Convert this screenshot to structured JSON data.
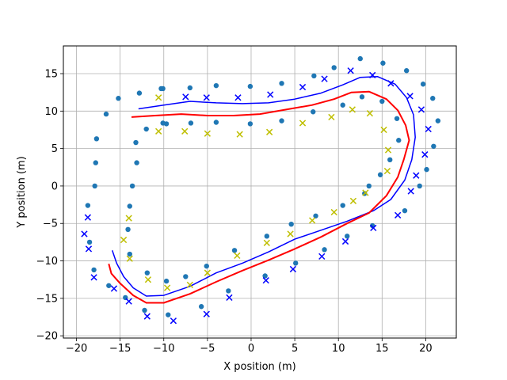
{
  "chart_data": {
    "type": "scatter",
    "xlabel": "X position (m)",
    "ylabel": "Y position (m)",
    "xlim": [
      -21.5,
      23.5
    ],
    "ylim": [
      -20.3,
      18.7
    ],
    "xticks": [
      -20,
      -15,
      -10,
      -5,
      0,
      5,
      10,
      15,
      20
    ],
    "yticks": [
      -20,
      -15,
      -10,
      -5,
      0,
      5,
      10,
      15
    ],
    "grid": true,
    "series": [
      {
        "marker": "circle",
        "color": "#1f77b4",
        "points": [
          [
            -16.6,
            9.6
          ],
          [
            -15.2,
            11.7
          ],
          [
            -12.8,
            12.4
          ],
          [
            -10.3,
            13.0
          ],
          [
            -7.0,
            13.1
          ],
          [
            -4.0,
            13.4
          ],
          [
            -0.1,
            13.3
          ],
          [
            3.5,
            13.7
          ],
          [
            7.2,
            14.7
          ],
          [
            9.5,
            15.8
          ],
          [
            12.5,
            17.0
          ],
          [
            15.1,
            16.4
          ],
          [
            17.8,
            15.4
          ],
          [
            19.7,
            13.6
          ],
          [
            20.8,
            11.7
          ],
          [
            21.4,
            8.7
          ],
          [
            20.9,
            5.3
          ],
          [
            20.1,
            2.2
          ],
          [
            19.3,
            0.0
          ],
          [
            17.6,
            -3.3
          ],
          [
            13.9,
            -5.3
          ],
          [
            11.0,
            -6.7
          ],
          [
            8.4,
            -8.5
          ],
          [
            5.1,
            -10.3
          ],
          [
            1.6,
            -12.0
          ],
          [
            -2.6,
            -14.0
          ],
          [
            -5.7,
            -16.1
          ],
          [
            -9.5,
            -17.2
          ],
          [
            -12.2,
            -16.6
          ],
          [
            -14.4,
            -14.9
          ],
          [
            -16.3,
            -13.3
          ],
          [
            -18.0,
            -11.2
          ],
          [
            -18.5,
            -7.5
          ],
          [
            -18.7,
            -2.6
          ],
          [
            -17.9,
            0.0
          ],
          [
            -17.8,
            3.1
          ],
          [
            -17.7,
            6.3
          ],
          [
            -13.2,
            5.8
          ],
          [
            -13.1,
            3.1
          ],
          [
            -13.6,
            0.0
          ],
          [
            -13.9,
            -2.7
          ],
          [
            -14.1,
            -5.8
          ],
          [
            -13.9,
            -9.1
          ],
          [
            -11.9,
            -11.6
          ],
          [
            -9.7,
            -12.7
          ],
          [
            -7.5,
            -12.1
          ],
          [
            -5.1,
            -10.7
          ],
          [
            -1.9,
            -8.6
          ],
          [
            1.8,
            -6.7
          ],
          [
            4.6,
            -5.1
          ],
          [
            7.4,
            -4.0
          ],
          [
            10.5,
            -2.6
          ],
          [
            13.0,
            -1.0
          ],
          [
            13.5,
            0.0
          ],
          [
            14.8,
            1.5
          ],
          [
            15.9,
            3.5
          ],
          [
            16.9,
            6.1
          ],
          [
            16.7,
            9.0
          ],
          [
            15.0,
            11.3
          ],
          [
            12.7,
            11.9
          ],
          [
            10.5,
            10.8
          ],
          [
            7.1,
            9.9
          ],
          [
            3.5,
            8.7
          ],
          [
            -0.1,
            8.3
          ],
          [
            -4.0,
            8.5
          ],
          [
            -6.9,
            8.4
          ],
          [
            -9.7,
            8.3
          ],
          [
            -12.0,
            7.6
          ],
          [
            -10.1,
            13.0
          ],
          [
            -10.1,
            8.4
          ]
        ]
      },
      {
        "marker": "x",
        "color": "#0000ff",
        "points": [
          [
            -7.5,
            11.9
          ],
          [
            -5.1,
            11.8
          ],
          [
            -1.5,
            11.8
          ],
          [
            2.2,
            12.2
          ],
          [
            5.9,
            13.2
          ],
          [
            8.4,
            14.3
          ],
          [
            11.4,
            15.4
          ],
          [
            13.9,
            14.8
          ],
          [
            16.0,
            13.7
          ],
          [
            18.2,
            12.0
          ],
          [
            19.5,
            10.2
          ],
          [
            20.3,
            7.6
          ],
          [
            19.9,
            4.2
          ],
          [
            18.9,
            1.4
          ],
          [
            18.3,
            -0.7
          ],
          [
            16.8,
            -3.9
          ],
          [
            14.0,
            -5.6
          ],
          [
            10.8,
            -7.4
          ],
          [
            8.1,
            -9.4
          ],
          [
            4.8,
            -11.1
          ],
          [
            1.7,
            -12.6
          ],
          [
            -2.5,
            -14.9
          ],
          [
            -5.1,
            -17.1
          ],
          [
            -8.9,
            -18.0
          ],
          [
            -11.9,
            -17.4
          ],
          [
            -14.0,
            -15.4
          ],
          [
            -15.7,
            -13.7
          ],
          [
            -18.0,
            -12.2
          ],
          [
            -18.6,
            -8.4
          ],
          [
            -19.1,
            -6.4
          ],
          [
            -18.7,
            -4.2
          ]
        ]
      },
      {
        "marker": "x",
        "color": "#bfbf00",
        "points": [
          [
            -10.6,
            11.8
          ],
          [
            -10.6,
            7.3
          ],
          [
            -7.6,
            7.3
          ],
          [
            -5.0,
            7.0
          ],
          [
            -1.3,
            6.9
          ],
          [
            2.1,
            7.2
          ],
          [
            5.9,
            8.4
          ],
          [
            9.2,
            9.2
          ],
          [
            11.6,
            10.2
          ],
          [
            13.6,
            9.7
          ],
          [
            15.2,
            7.5
          ],
          [
            15.7,
            4.8
          ],
          [
            15.6,
            2.0
          ],
          [
            13.1,
            -0.9
          ],
          [
            11.7,
            -2.0
          ],
          [
            9.5,
            -3.5
          ],
          [
            7.0,
            -4.6
          ],
          [
            4.5,
            -6.4
          ],
          [
            1.8,
            -7.6
          ],
          [
            -1.6,
            -9.3
          ],
          [
            -5.0,
            -11.6
          ],
          [
            -7.0,
            -13.2
          ],
          [
            -9.6,
            -13.6
          ],
          [
            -11.8,
            -12.5
          ],
          [
            -13.9,
            -9.7
          ],
          [
            -14.6,
            -7.2
          ],
          [
            -14.0,
            -4.3
          ]
        ]
      }
    ],
    "lines": [
      {
        "color": "#0000ff",
        "points": [
          [
            -12.9,
            10.3
          ],
          [
            -10.0,
            10.8
          ],
          [
            -7.0,
            11.3
          ],
          [
            -4.0,
            11.1
          ],
          [
            -1.0,
            11.0
          ],
          [
            2.0,
            11.1
          ],
          [
            5.0,
            11.6
          ],
          [
            8.0,
            12.4
          ],
          [
            10.5,
            13.5
          ],
          [
            12.5,
            14.5
          ],
          [
            14.5,
            14.6
          ],
          [
            16.5,
            13.6
          ],
          [
            17.8,
            11.8
          ],
          [
            18.6,
            9.5
          ],
          [
            18.8,
            6.5
          ],
          [
            18.4,
            3.5
          ],
          [
            17.6,
            0.8
          ],
          [
            16.0,
            -1.8
          ],
          [
            14.0,
            -3.3
          ],
          [
            11.0,
            -4.7
          ],
          [
            8.0,
            -5.9
          ],
          [
            5.0,
            -7.1
          ],
          [
            2.0,
            -8.8
          ],
          [
            -1.0,
            -10.3
          ],
          [
            -4.0,
            -11.6
          ],
          [
            -7.0,
            -13.4
          ],
          [
            -10.0,
            -14.6
          ],
          [
            -12.0,
            -14.7
          ],
          [
            -13.5,
            -13.6
          ],
          [
            -14.6,
            -12.1
          ],
          [
            -15.4,
            -10.3
          ],
          [
            -15.9,
            -8.6
          ]
        ]
      },
      {
        "color": "#ff0000",
        "points": [
          [
            -13.7,
            9.2
          ],
          [
            -11.0,
            9.4
          ],
          [
            -8.0,
            9.6
          ],
          [
            -5.0,
            9.4
          ],
          [
            -2.0,
            9.4
          ],
          [
            1.0,
            9.6
          ],
          [
            4.0,
            10.2
          ],
          [
            7.0,
            10.8
          ],
          [
            9.5,
            11.6
          ],
          [
            11.5,
            12.5
          ],
          [
            13.5,
            12.6
          ],
          [
            15.5,
            11.6
          ],
          [
            16.8,
            10.1
          ],
          [
            17.7,
            8.1
          ],
          [
            18.1,
            6.1
          ],
          [
            17.5,
            3.6
          ],
          [
            16.8,
            1.2
          ],
          [
            15.5,
            -1.3
          ],
          [
            13.5,
            -3.6
          ],
          [
            11.0,
            -5.0
          ],
          [
            8.0,
            -6.8
          ],
          [
            5.0,
            -8.4
          ],
          [
            2.0,
            -9.9
          ],
          [
            -1.0,
            -11.3
          ],
          [
            -4.0,
            -12.8
          ],
          [
            -7.0,
            -14.4
          ],
          [
            -10.0,
            -15.6
          ],
          [
            -12.0,
            -15.6
          ],
          [
            -13.5,
            -14.6
          ],
          [
            -15.0,
            -13.0
          ],
          [
            -16.0,
            -11.7
          ],
          [
            -16.3,
            -10.4
          ]
        ]
      }
    ]
  }
}
